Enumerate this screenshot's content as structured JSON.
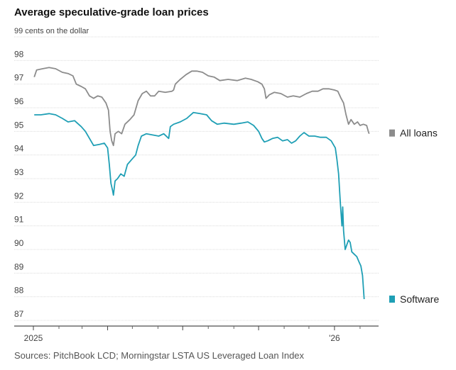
{
  "chart_data": {
    "type": "line",
    "title": "Average speculative-grade loan prices",
    "ylabel": "cents on the dollar",
    "ylim": [
      87,
      99
    ],
    "yticks": [
      87,
      88,
      89,
      90,
      91,
      92,
      93,
      94,
      95,
      96,
      97,
      98,
      99
    ],
    "top_tick_label": "99 cents on the dollar",
    "xlim": [
      "2025-01-01",
      "2026-02-20"
    ],
    "xtick_labels": [
      {
        "date": "2025-01-01",
        "label": "2025"
      },
      {
        "date": "2026-01-01",
        "label": "'26"
      }
    ],
    "xticks_unlabeled": [
      "2025-04-01",
      "2025-07-01",
      "2025-10-01"
    ],
    "xminor": [
      "2025-02-01",
      "2025-03-01",
      "2025-05-01",
      "2025-06-01",
      "2025-08-01",
      "2025-09-01",
      "2025-11-01",
      "2025-12-01",
      "2026-02-01"
    ],
    "grid": true,
    "legend": "direct labels at right end of lines",
    "series": [
      {
        "name": "All loans",
        "color": "#8c8c8c",
        "points": [
          [
            "2025-01-02",
            97.3
          ],
          [
            "2025-01-05",
            97.6
          ],
          [
            "2025-01-12",
            97.65
          ],
          [
            "2025-01-20",
            97.7
          ],
          [
            "2025-01-28",
            97.65
          ],
          [
            "2025-02-05",
            97.5
          ],
          [
            "2025-02-12",
            97.45
          ],
          [
            "2025-02-18",
            97.35
          ],
          [
            "2025-02-22",
            97.0
          ],
          [
            "2025-02-28",
            96.9
          ],
          [
            "2025-03-05",
            96.8
          ],
          [
            "2025-03-10",
            96.5
          ],
          [
            "2025-03-15",
            96.4
          ],
          [
            "2025-03-20",
            96.5
          ],
          [
            "2025-03-25",
            96.45
          ],
          [
            "2025-03-30",
            96.2
          ],
          [
            "2025-04-02",
            95.9
          ],
          [
            "2025-04-04",
            95.0
          ],
          [
            "2025-04-06",
            94.6
          ],
          [
            "2025-04-08",
            94.4
          ],
          [
            "2025-04-10",
            94.9
          ],
          [
            "2025-04-14",
            95.0
          ],
          [
            "2025-04-18",
            94.9
          ],
          [
            "2025-04-22",
            95.3
          ],
          [
            "2025-04-28",
            95.5
          ],
          [
            "2025-05-03",
            95.7
          ],
          [
            "2025-05-08",
            96.3
          ],
          [
            "2025-05-13",
            96.6
          ],
          [
            "2025-05-18",
            96.7
          ],
          [
            "2025-05-23",
            96.5
          ],
          [
            "2025-05-28",
            96.5
          ],
          [
            "2025-06-02",
            96.7
          ],
          [
            "2025-06-10",
            96.65
          ],
          [
            "2025-06-18",
            96.7
          ],
          [
            "2025-06-20",
            96.75
          ],
          [
            "2025-06-22",
            97.0
          ],
          [
            "2025-06-28",
            97.2
          ],
          [
            "2025-07-05",
            97.4
          ],
          [
            "2025-07-12",
            97.55
          ],
          [
            "2025-07-18",
            97.55
          ],
          [
            "2025-07-25",
            97.5
          ],
          [
            "2025-08-01",
            97.35
          ],
          [
            "2025-08-08",
            97.3
          ],
          [
            "2025-08-15",
            97.15
          ],
          [
            "2025-08-25",
            97.2
          ],
          [
            "2025-09-05",
            97.15
          ],
          [
            "2025-09-15",
            97.25
          ],
          [
            "2025-09-22",
            97.2
          ],
          [
            "2025-09-30",
            97.1
          ],
          [
            "2025-10-05",
            97.0
          ],
          [
            "2025-10-08",
            96.8
          ],
          [
            "2025-10-10",
            96.4
          ],
          [
            "2025-10-14",
            96.55
          ],
          [
            "2025-10-20",
            96.65
          ],
          [
            "2025-10-28",
            96.6
          ],
          [
            "2025-11-05",
            96.45
          ],
          [
            "2025-11-12",
            96.5
          ],
          [
            "2025-11-20",
            96.45
          ],
          [
            "2025-11-28",
            96.6
          ],
          [
            "2025-12-05",
            96.7
          ],
          [
            "2025-12-12",
            96.7
          ],
          [
            "2025-12-18",
            96.8
          ],
          [
            "2025-12-25",
            96.8
          ],
          [
            "2026-01-01",
            96.75
          ],
          [
            "2026-01-05",
            96.7
          ],
          [
            "2026-01-09",
            96.4
          ],
          [
            "2026-01-12",
            96.2
          ],
          [
            "2026-01-15",
            95.7
          ],
          [
            "2026-01-18",
            95.3
          ],
          [
            "2026-01-21",
            95.5
          ],
          [
            "2026-01-25",
            95.3
          ],
          [
            "2026-01-29",
            95.4
          ],
          [
            "2026-02-01",
            95.25
          ],
          [
            "2026-02-05",
            95.3
          ],
          [
            "2026-02-09",
            95.25
          ],
          [
            "2026-02-11",
            95.0
          ],
          [
            "2026-02-12",
            94.9
          ]
        ]
      },
      {
        "name": "Software",
        "color": "#1f9fb5",
        "points": [
          [
            "2025-01-02",
            95.7
          ],
          [
            "2025-01-10",
            95.7
          ],
          [
            "2025-01-20",
            95.75
          ],
          [
            "2025-01-28",
            95.7
          ],
          [
            "2025-02-05",
            95.55
          ],
          [
            "2025-02-12",
            95.4
          ],
          [
            "2025-02-20",
            95.45
          ],
          [
            "2025-02-28",
            95.2
          ],
          [
            "2025-03-05",
            95.0
          ],
          [
            "2025-03-10",
            94.7
          ],
          [
            "2025-03-15",
            94.4
          ],
          [
            "2025-03-22",
            94.45
          ],
          [
            "2025-03-28",
            94.5
          ],
          [
            "2025-04-01",
            94.3
          ],
          [
            "2025-04-03",
            93.6
          ],
          [
            "2025-04-05",
            92.8
          ],
          [
            "2025-04-07",
            92.5
          ],
          [
            "2025-04-08",
            92.3
          ],
          [
            "2025-04-10",
            92.9
          ],
          [
            "2025-04-13",
            93.0
          ],
          [
            "2025-04-17",
            93.2
          ],
          [
            "2025-04-21",
            93.1
          ],
          [
            "2025-04-25",
            93.6
          ],
          [
            "2025-04-30",
            93.8
          ],
          [
            "2025-05-05",
            94.0
          ],
          [
            "2025-05-08",
            94.4
          ],
          [
            "2025-05-12",
            94.8
          ],
          [
            "2025-05-18",
            94.9
          ],
          [
            "2025-05-25",
            94.85
          ],
          [
            "2025-06-02",
            94.8
          ],
          [
            "2025-06-08",
            94.9
          ],
          [
            "2025-06-14",
            94.7
          ],
          [
            "2025-06-16",
            95.2
          ],
          [
            "2025-06-20",
            95.3
          ],
          [
            "2025-06-28",
            95.4
          ],
          [
            "2025-07-06",
            95.55
          ],
          [
            "2025-07-14",
            95.8
          ],
          [
            "2025-07-22",
            95.75
          ],
          [
            "2025-07-30",
            95.7
          ],
          [
            "2025-08-05",
            95.45
          ],
          [
            "2025-08-12",
            95.3
          ],
          [
            "2025-08-20",
            95.35
          ],
          [
            "2025-09-01",
            95.3
          ],
          [
            "2025-09-10",
            95.35
          ],
          [
            "2025-09-18",
            95.4
          ],
          [
            "2025-09-25",
            95.25
          ],
          [
            "2025-10-01",
            95.0
          ],
          [
            "2025-10-05",
            94.7
          ],
          [
            "2025-10-08",
            94.55
          ],
          [
            "2025-10-12",
            94.6
          ],
          [
            "2025-10-18",
            94.7
          ],
          [
            "2025-10-24",
            94.75
          ],
          [
            "2025-10-30",
            94.6
          ],
          [
            "2025-11-05",
            94.65
          ],
          [
            "2025-11-10",
            94.5
          ],
          [
            "2025-11-15",
            94.6
          ],
          [
            "2025-11-20",
            94.8
          ],
          [
            "2025-11-25",
            94.95
          ],
          [
            "2025-12-01",
            94.8
          ],
          [
            "2025-12-08",
            94.8
          ],
          [
            "2025-12-15",
            94.75
          ],
          [
            "2025-12-22",
            94.75
          ],
          [
            "2025-12-28",
            94.6
          ],
          [
            "2026-01-02",
            94.3
          ],
          [
            "2026-01-04",
            93.8
          ],
          [
            "2026-01-06",
            93.2
          ],
          [
            "2026-01-08",
            92.0
          ],
          [
            "2026-01-10",
            91.0
          ],
          [
            "2026-01-11",
            91.8
          ],
          [
            "2026-01-12",
            90.8
          ],
          [
            "2026-01-14",
            90.0
          ],
          [
            "2026-01-16",
            90.2
          ],
          [
            "2026-01-18",
            90.4
          ],
          [
            "2026-01-20",
            90.3
          ],
          [
            "2026-01-22",
            89.9
          ],
          [
            "2026-01-25",
            89.8
          ],
          [
            "2026-01-28",
            89.7
          ],
          [
            "2026-01-31",
            89.45
          ],
          [
            "2026-02-02",
            89.3
          ],
          [
            "2026-02-04",
            88.9
          ],
          [
            "2026-02-06",
            87.9
          ]
        ]
      }
    ],
    "source": "Sources: PitchBook LCD; Morningstar LSTA US Leveraged Loan Index"
  }
}
